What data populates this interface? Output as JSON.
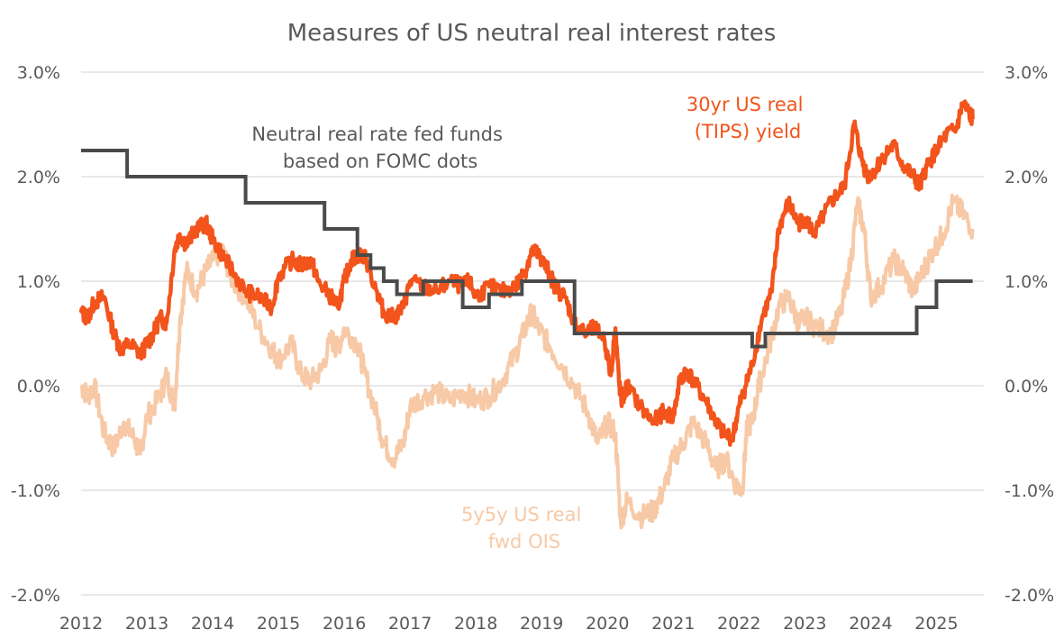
{
  "chart_data": {
    "type": "line",
    "title": "Measures of US neutral real interest rates",
    "x_ticks": [
      "2012",
      "2013",
      "2014",
      "2015",
      "2016",
      "2017",
      "2018",
      "2019",
      "2020",
      "2021",
      "2022",
      "2023",
      "2024",
      "2025"
    ],
    "y_ticks": [
      "3.0%",
      "2.0%",
      "1.0%",
      "0.0%",
      "-1.0%",
      "-2.0%"
    ],
    "y_tick_values": [
      3.0,
      2.0,
      1.0,
      0.0,
      -1.0,
      -2.0
    ],
    "xlim": [
      2012,
      2025.6
    ],
    "ylim": [
      -2.0,
      3.0
    ],
    "grid": true,
    "legend": "none (direct annotations)",
    "annotations": {
      "tips": [
        "30yr US real",
        "(TIPS) yield"
      ],
      "fomc": [
        "Neutral real rate fed funds",
        "based on FOMC dots"
      ],
      "ois": [
        "5y5y US real",
        "fwd OIS"
      ]
    },
    "colors": {
      "tips": "#F2541B",
      "ois": "#F7C9A6",
      "fomc": "#4A4A4A",
      "grid": "#D9D9D9",
      "text": "#595959"
    },
    "series": [
      {
        "name": "30yr US real (TIPS) yield",
        "x": [
          2012.0,
          2012.1,
          2012.2,
          2012.35,
          2012.5,
          2012.6,
          2012.75,
          2012.9,
          2013.0,
          2013.1,
          2013.2,
          2013.3,
          2013.42,
          2013.5,
          2013.6,
          2013.75,
          2013.9,
          2014.0,
          2014.15,
          2014.3,
          2014.5,
          2014.7,
          2014.9,
          2015.0,
          2015.2,
          2015.35,
          2015.5,
          2015.6,
          2015.8,
          2015.9,
          2016.0,
          2016.1,
          2016.2,
          2016.3,
          2016.5,
          2016.6,
          2016.75,
          2016.9,
          2017.0,
          2017.2,
          2017.4,
          2017.6,
          2017.8,
          2017.9,
          2018.0,
          2018.2,
          2018.4,
          2018.6,
          2018.75,
          2018.85,
          2018.95,
          2019.0,
          2019.1,
          2019.2,
          2019.35,
          2019.5,
          2019.65,
          2019.8,
          2019.95,
          2020.05,
          2020.12,
          2020.18,
          2020.22,
          2020.3,
          2020.5,
          2020.7,
          2020.85,
          2021.0,
          2021.1,
          2021.2,
          2021.35,
          2021.5,
          2021.65,
          2021.75,
          2021.9,
          2022.0,
          2022.1,
          2022.2,
          2022.35,
          2022.5,
          2022.6,
          2022.75,
          2022.9,
          2023.0,
          2023.15,
          2023.3,
          2023.45,
          2023.6,
          2023.75,
          2023.85,
          2023.95,
          2024.05,
          2024.2,
          2024.35,
          2024.5,
          2024.65,
          2024.75,
          2024.85,
          2025.0,
          2025.15,
          2025.3,
          2025.4,
          2025.5,
          2025.55
        ],
        "y": [
          0.7,
          0.65,
          0.8,
          0.85,
          0.5,
          0.35,
          0.4,
          0.3,
          0.4,
          0.5,
          0.65,
          0.6,
          1.3,
          1.45,
          1.35,
          1.5,
          1.55,
          1.4,
          1.25,
          1.1,
          0.9,
          0.85,
          0.75,
          1.05,
          1.2,
          1.15,
          1.2,
          1.0,
          0.85,
          0.75,
          1.0,
          1.2,
          1.25,
          1.25,
          0.9,
          0.7,
          0.65,
          0.75,
          1.0,
          0.95,
          0.9,
          1.0,
          0.95,
          1.0,
          0.85,
          0.95,
          0.9,
          0.95,
          1.1,
          1.3,
          1.25,
          1.2,
          1.1,
          0.95,
          0.85,
          0.6,
          0.5,
          0.55,
          0.45,
          0.1,
          0.55,
          0.0,
          -0.15,
          0.0,
          -0.2,
          -0.35,
          -0.25,
          -0.3,
          0.05,
          0.15,
          0.0,
          -0.15,
          -0.35,
          -0.45,
          -0.5,
          -0.2,
          0.0,
          0.2,
          0.65,
          0.9,
          1.5,
          1.75,
          1.55,
          1.6,
          1.45,
          1.65,
          1.8,
          1.9,
          2.5,
          2.2,
          2.0,
          2.05,
          2.2,
          2.3,
          2.1,
          2.0,
          1.9,
          2.1,
          2.25,
          2.4,
          2.45,
          2.7,
          2.6,
          2.55
        ]
      },
      {
        "name": "5y5y US real fwd OIS",
        "x": [
          2012.0,
          2012.1,
          2012.2,
          2012.35,
          2012.5,
          2012.65,
          2012.8,
          2012.9,
          2013.0,
          2013.2,
          2013.3,
          2013.42,
          2013.5,
          2013.6,
          2013.75,
          2013.9,
          2014.0,
          2014.15,
          2014.3,
          2014.5,
          2014.7,
          2014.9,
          2015.0,
          2015.2,
          2015.35,
          2015.5,
          2015.65,
          2015.8,
          2015.9,
          2016.0,
          2016.2,
          2016.3,
          2016.5,
          2016.6,
          2016.75,
          2016.9,
          2017.0,
          2017.2,
          2017.4,
          2017.6,
          2017.8,
          2018.0,
          2018.2,
          2018.4,
          2018.6,
          2018.75,
          2018.85,
          2018.95,
          2019.1,
          2019.3,
          2019.5,
          2019.7,
          2019.85,
          2020.0,
          2020.12,
          2020.2,
          2020.3,
          2020.5,
          2020.7,
          2020.85,
          2021.0,
          2021.15,
          2021.3,
          2021.5,
          2021.65,
          2021.8,
          2021.95,
          2022.05,
          2022.12,
          2022.2,
          2022.3,
          2022.45,
          2022.6,
          2022.75,
          2022.9,
          2023.0,
          2023.2,
          2023.4,
          2023.55,
          2023.7,
          2023.8,
          2023.9,
          2024.0,
          2024.15,
          2024.35,
          2024.5,
          2024.65,
          2024.8,
          2024.95,
          2025.1,
          2025.25,
          2025.4,
          2025.55
        ],
        "y": [
          0.0,
          -0.1,
          0.0,
          -0.45,
          -0.6,
          -0.35,
          -0.5,
          -0.65,
          -0.3,
          -0.1,
          0.1,
          -0.2,
          0.6,
          1.1,
          0.9,
          1.1,
          1.2,
          1.3,
          1.0,
          0.85,
          0.55,
          0.35,
          0.25,
          0.4,
          0.1,
          0.05,
          0.15,
          0.45,
          0.35,
          0.55,
          0.4,
          0.15,
          -0.3,
          -0.55,
          -0.7,
          -0.55,
          -0.2,
          -0.1,
          -0.05,
          -0.15,
          -0.05,
          -0.15,
          -0.1,
          0.05,
          0.3,
          0.55,
          0.7,
          0.55,
          0.4,
          0.2,
          0.0,
          -0.25,
          -0.55,
          -0.35,
          -0.45,
          -1.3,
          -1.1,
          -1.25,
          -1.2,
          -1.0,
          -0.7,
          -0.55,
          -0.35,
          -0.55,
          -0.8,
          -0.7,
          -0.95,
          -1.0,
          -0.4,
          -0.35,
          0.0,
          0.35,
          0.75,
          0.85,
          0.6,
          0.65,
          0.55,
          0.5,
          0.7,
          1.2,
          1.75,
          1.5,
          0.85,
          0.95,
          1.2,
          1.1,
          0.9,
          1.1,
          1.3,
          1.45,
          1.75,
          1.65,
          1.5
        ]
      },
      {
        "name": "Neutral real rate fed funds based on FOMC dots",
        "step": true,
        "x": [
          2012.0,
          2012.7,
          2014.5,
          2015.7,
          2016.2,
          2016.4,
          2016.6,
          2016.8,
          2017.2,
          2017.8,
          2018.2,
          2018.7,
          2019.5,
          2022.2,
          2022.4,
          2024.0,
          2024.4,
          2024.7,
          2025.0,
          2025.55
        ],
        "y": [
          2.25,
          2.0,
          1.75,
          1.5,
          1.25,
          1.125,
          1.0,
          0.875,
          1.0,
          0.75,
          0.875,
          1.0,
          0.5,
          0.375,
          0.5,
          0.5,
          0.5,
          0.75,
          1.0,
          1.0
        ]
      }
    ]
  }
}
